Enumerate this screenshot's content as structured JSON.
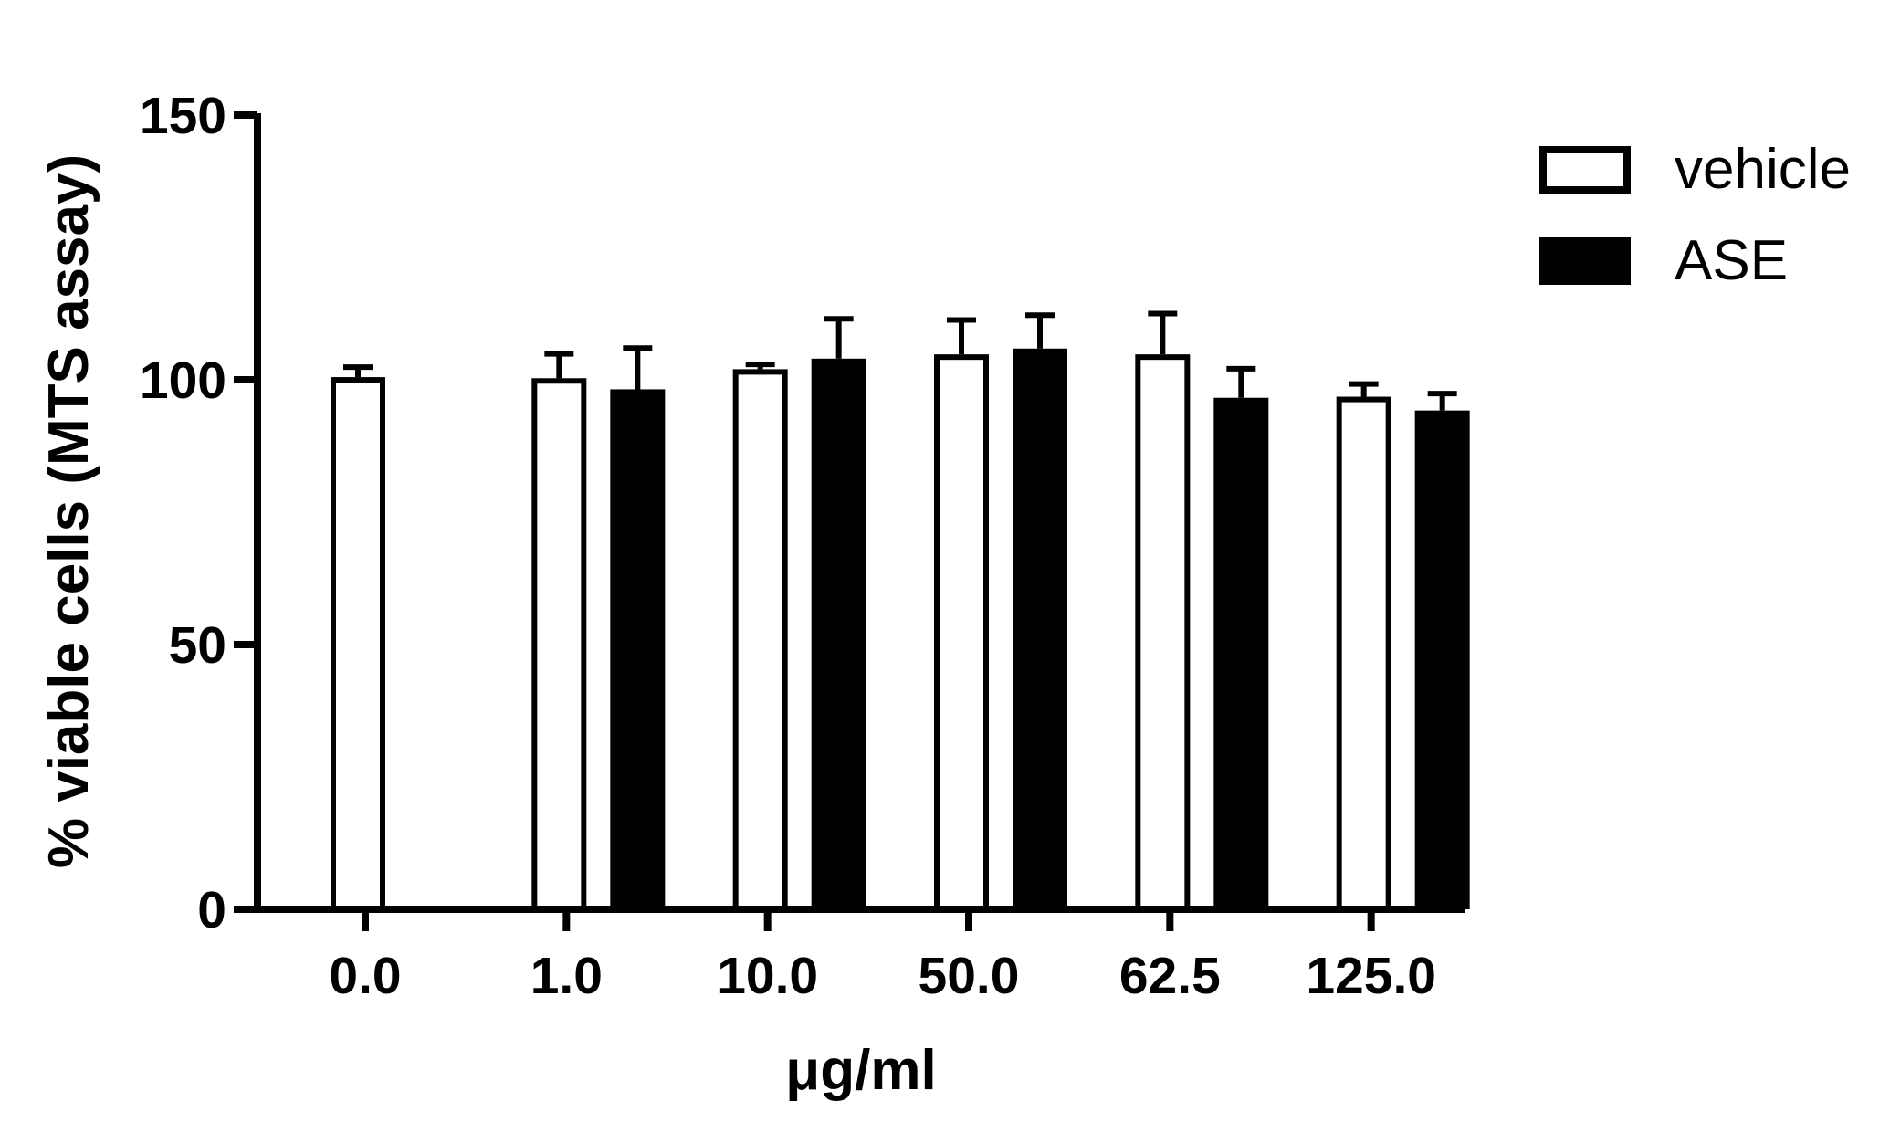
{
  "chart_data": {
    "type": "bar",
    "title": "",
    "xlabel": "μg/ml",
    "ylabel": "% viable cells (MTS assay)",
    "ylim": [
      0,
      150
    ],
    "yticks": [
      0,
      50,
      100,
      150
    ],
    "grid": false,
    "legend_position": "top-right",
    "categories": [
      "0.0",
      "1.0",
      "10.0",
      "50.0",
      "62.5",
      "125.0"
    ],
    "series": [
      {
        "name": "vehicle",
        "style": "open",
        "color": "#ffffff",
        "edge_color": "#000000",
        "values": [
          100.5,
          100.3,
          102.0,
          104.8,
          104.8,
          96.8
        ],
        "errors": [
          1.9,
          4.6,
          0.9,
          6.5,
          7.7,
          2.4
        ]
      },
      {
        "name": "ASE",
        "style": "filled",
        "color": "#000000",
        "edge_color": "#000000",
        "values": [
          null,
          98.2,
          104.0,
          105.9,
          96.6,
          94.2
        ],
        "errors": [
          null,
          7.8,
          7.5,
          6.3,
          5.5,
          3.2
        ]
      }
    ]
  }
}
